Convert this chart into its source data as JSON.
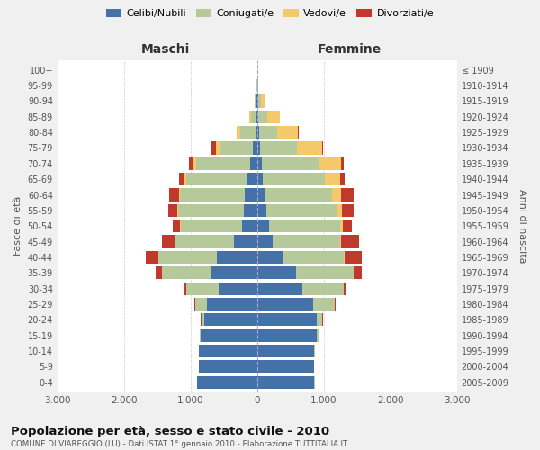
{
  "age_groups_bottom_to_top": [
    "0-4",
    "5-9",
    "10-14",
    "15-19",
    "20-24",
    "25-29",
    "30-34",
    "35-39",
    "40-44",
    "45-49",
    "50-54",
    "55-59",
    "60-64",
    "65-69",
    "70-74",
    "75-79",
    "80-84",
    "85-89",
    "90-94",
    "95-99",
    "100+"
  ],
  "birth_years_bottom_to_top": [
    "2005-2009",
    "2000-2004",
    "1995-1999",
    "1990-1994",
    "1985-1989",
    "1980-1984",
    "1975-1979",
    "1970-1974",
    "1965-1969",
    "1960-1964",
    "1955-1959",
    "1950-1954",
    "1945-1949",
    "1940-1944",
    "1935-1939",
    "1930-1934",
    "1925-1929",
    "1920-1924",
    "1915-1919",
    "1910-1914",
    "≤ 1909"
  ],
  "males_celibi": [
    900,
    870,
    870,
    850,
    800,
    750,
    580,
    700,
    600,
    350,
    230,
    200,
    180,
    150,
    100,
    60,
    30,
    15,
    8,
    3,
    2
  ],
  "males_coniugati": [
    3,
    1,
    3,
    8,
    40,
    180,
    480,
    730,
    880,
    880,
    920,
    980,
    980,
    920,
    820,
    500,
    220,
    80,
    25,
    4,
    1
  ],
  "males_vedovi": [
    0,
    0,
    0,
    0,
    0,
    1,
    2,
    3,
    3,
    8,
    12,
    18,
    18,
    25,
    45,
    55,
    55,
    25,
    8,
    2,
    1
  ],
  "males_divorziati": [
    0,
    0,
    0,
    1,
    3,
    8,
    45,
    90,
    190,
    190,
    110,
    140,
    140,
    75,
    55,
    75,
    8,
    4,
    1,
    0,
    0
  ],
  "females_nubili": [
    860,
    850,
    860,
    890,
    890,
    840,
    680,
    580,
    380,
    230,
    180,
    140,
    110,
    90,
    70,
    40,
    25,
    15,
    12,
    4,
    2
  ],
  "females_coniugate": [
    3,
    3,
    8,
    25,
    90,
    330,
    620,
    870,
    920,
    1010,
    1060,
    1060,
    1020,
    920,
    870,
    560,
    270,
    140,
    45,
    6,
    1
  ],
  "females_vedove": [
    0,
    0,
    0,
    0,
    0,
    1,
    1,
    3,
    8,
    16,
    45,
    70,
    135,
    230,
    320,
    370,
    320,
    180,
    55,
    12,
    4
  ],
  "females_divorziate": [
    0,
    0,
    0,
    1,
    3,
    8,
    45,
    120,
    260,
    280,
    140,
    185,
    185,
    70,
    45,
    25,
    8,
    4,
    1,
    0,
    0
  ],
  "colors": {
    "celibi": "#4472a8",
    "coniugati": "#b5c99a",
    "vedovi": "#f5c96a",
    "divorziati": "#c0392b"
  },
  "xlim": 3000,
  "title": "Popolazione per età, sesso e stato civile - 2010",
  "subtitle": "COMUNE DI VIAREGGIO (LU) - Dati ISTAT 1° gennaio 2010 - Elaborazione TUTTITALIA.IT",
  "label_maschi": "Maschi",
  "label_femmine": "Femmine",
  "ylabel_left": "Fasce di età",
  "ylabel_right": "Anni di nascita",
  "legend_labels": [
    "Celibi/Nubili",
    "Coniugati/e",
    "Vedovi/e",
    "Divorziati/e"
  ],
  "bg_color": "#f0f0f0",
  "plot_bg": "#ffffff"
}
